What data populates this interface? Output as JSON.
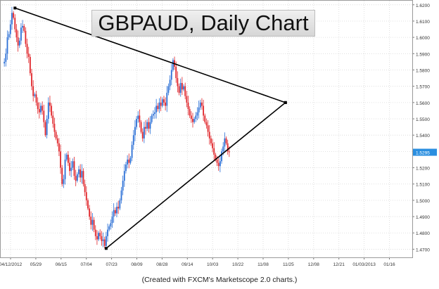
{
  "title": "GBPAUD, Daily Chart",
  "caption": "(Created with FXCM's Marketscope 2.0 charts.)",
  "colors": {
    "up": "#2b6fd6",
    "down": "#e0262b",
    "grid": "#d8d8d8",
    "trendline": "#000000",
    "price_badge": "#2b8fe0"
  },
  "chart_data": {
    "type": "candlestick",
    "title": "GBPAUD, Daily Chart",
    "x_tick_labels": [
      "04/12/2012",
      "05/29",
      "06/15",
      "07/04",
      "07/23",
      "08/09",
      "08/28",
      "09/14",
      "10/03",
      "10/22",
      "11/08",
      "11/25",
      "12/08",
      "12/21",
      "01/03/2013",
      "01/16"
    ],
    "y_tick_labels": [
      "1.4700",
      "1.4800",
      "1.4900",
      "1.5000",
      "1.5100",
      "1.5200",
      "1.5300",
      "1.5400",
      "1.5500",
      "1.5600",
      "1.5700",
      "1.5800",
      "1.5900",
      "1.6000",
      "1.6100",
      "1.6200"
    ],
    "ylim": [
      1.465,
      1.6225
    ],
    "grid": true,
    "last_price_label": "1.5295",
    "trendlines": [
      {
        "name": "upper",
        "from": {
          "index": 8,
          "price": 1.618
        },
        "to": {
          "index": 186,
          "price": 1.56
        }
      },
      {
        "name": "lower",
        "from": {
          "index": 68,
          "price": 1.4705
        },
        "to": {
          "index": 186,
          "price": 1.56
        }
      }
    ],
    "closes": [
      1.584,
      1.585,
      1.59,
      1.6,
      1.602,
      1.608,
      1.615,
      1.612,
      1.605,
      1.6,
      1.595,
      1.598,
      1.606,
      1.607,
      1.604,
      1.596,
      1.59,
      1.588,
      1.578,
      1.57,
      1.564,
      1.565,
      1.56,
      1.556,
      1.554,
      1.558,
      1.555,
      1.548,
      1.54,
      1.55,
      1.56,
      1.558,
      1.552,
      1.547,
      1.542,
      1.538,
      1.535,
      1.53,
      1.52,
      1.51,
      1.513,
      1.525,
      1.528,
      1.523,
      1.518,
      1.52,
      1.524,
      1.515,
      1.512,
      1.516,
      1.519,
      1.514,
      1.518,
      1.51,
      1.505,
      1.5,
      1.495,
      1.49,
      1.485,
      1.488,
      1.482,
      1.478,
      1.476,
      1.48,
      1.478,
      1.475,
      1.476,
      1.472,
      1.478,
      1.482,
      1.484,
      1.486,
      1.49,
      1.494,
      1.492,
      1.496,
      1.495,
      1.5,
      1.506,
      1.512,
      1.518,
      1.522,
      1.525,
      1.523,
      1.526,
      1.534,
      1.54,
      1.545,
      1.55,
      1.552,
      1.548,
      1.542,
      1.538,
      1.545,
      1.544,
      1.548,
      1.544,
      1.548,
      1.552,
      1.553,
      1.554,
      1.558,
      1.556,
      1.56,
      1.558,
      1.562,
      1.56,
      1.558,
      1.566,
      1.57,
      1.574,
      1.58,
      1.586,
      1.582,
      1.575,
      1.57,
      1.566,
      1.572,
      1.568,
      1.57,
      1.564,
      1.56,
      1.556,
      1.552,
      1.55,
      1.548,
      1.55,
      1.552,
      1.554,
      1.557,
      1.56,
      1.558,
      1.552,
      1.548,
      1.546,
      1.542,
      1.538,
      1.535,
      1.532,
      1.528,
      1.525,
      1.523,
      1.521,
      1.524,
      1.53,
      1.533,
      1.538,
      1.535,
      1.53,
      1.5295
    ]
  }
}
